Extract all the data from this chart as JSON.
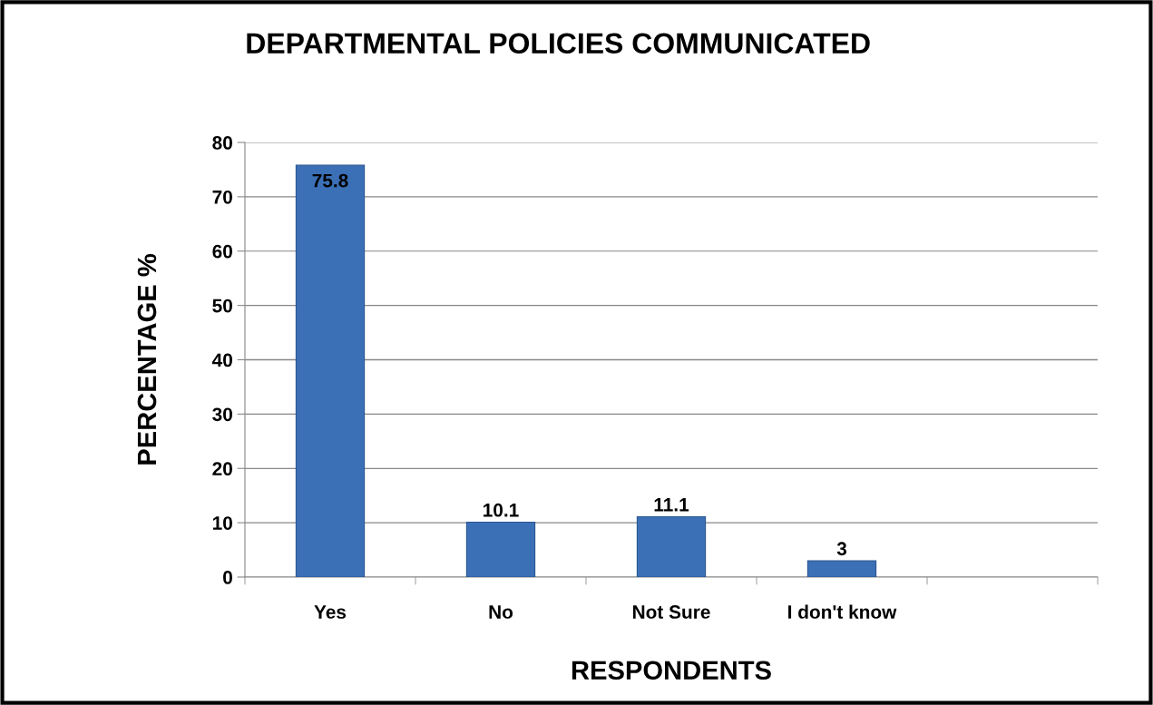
{
  "chart_data": {
    "type": "bar",
    "title": "DEPARTMENTAL POLICIES COMMUNICATED",
    "xlabel": "RESPONDENTS",
    "ylabel": "PERCENTAGE %",
    "categories": [
      "Yes",
      "No",
      "Not Sure",
      "I don't know",
      null
    ],
    "values": [
      75.8,
      10.1,
      11.1,
      3,
      null
    ],
    "color": "#3b70b6",
    "ylim": [
      0,
      80
    ],
    "yticks": [
      0,
      10,
      20,
      30,
      40,
      50,
      60,
      70,
      80
    ],
    "grid": "y",
    "data_labels": true
  }
}
